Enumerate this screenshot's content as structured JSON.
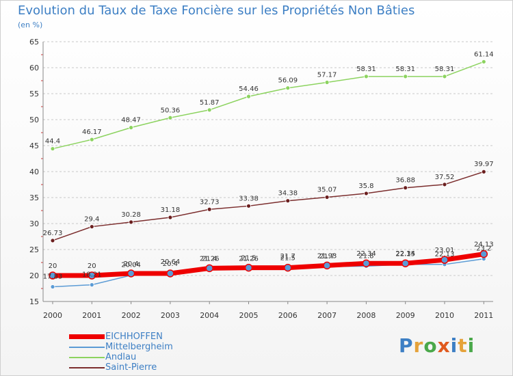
{
  "title": "Evolution du Taux de Taxe Foncière sur les Propriétés Non Bâties",
  "unit": "(en %)",
  "logo": {
    "text": "Proxiti",
    "letter_colors": [
      "#3d7fc4",
      "#e5a23a",
      "#4aa84a",
      "#e05a1e",
      "#3d7fc4",
      "#e5a23a",
      "#4aa84a"
    ]
  },
  "chart_data": {
    "type": "line",
    "title": "Evolution du Taux de Taxe Foncière sur les Propriétés Non Bâties",
    "ylabel": "(en %)",
    "xlabel": "",
    "x": [
      "2000",
      "2001",
      "2002",
      "2003",
      "2004",
      "2005",
      "2006",
      "2007",
      "2008",
      "2009",
      "2010",
      "2011"
    ],
    "ylim": [
      15,
      65
    ],
    "yticks": [
      15,
      20,
      25,
      30,
      35,
      40,
      45,
      50,
      55,
      60,
      65
    ],
    "grid": "dashed-horizontal",
    "series": [
      {
        "name": "EICHHOFFEN",
        "color": "#ee0000",
        "values": [
          20,
          20,
          20.4,
          20.4,
          21.4,
          21.5,
          21.5,
          21.93,
          22.34,
          22.34,
          23.01,
          24.13
        ],
        "labels": [
          "20",
          "20",
          "20.4",
          "20.4",
          "21.4",
          "21.5",
          "21.5",
          "21.93",
          "22.34",
          "22.34",
          "23.01",
          "24.13"
        ]
      },
      {
        "name": "Mittelbergheim",
        "color": "#5b9bd5",
        "values": [
          17.83,
          18.21,
          20.04,
          20.64,
          21.26,
          21.26,
          21.7,
          21.7,
          21.8,
          22.15,
          22.13,
          23.2
        ],
        "labels": [
          "17.83",
          "18.21",
          "20.04",
          "20.64",
          "21.26",
          "21.26",
          "21.7",
          "21.7",
          "21.8",
          "22.15",
          "22.13",
          "23.2"
        ]
      },
      {
        "name": "Andlau",
        "color": "#8cd35f",
        "values": [
          44.4,
          46.17,
          48.47,
          50.36,
          51.87,
          54.46,
          56.09,
          57.17,
          58.31,
          58.31,
          58.31,
          61.14
        ],
        "labels": [
          "44.4",
          "46.17",
          "48.47",
          "50.36",
          "51.87",
          "54.46",
          "56.09",
          "57.17",
          "58.31",
          "58.31",
          "58.31",
          "61.14"
        ]
      },
      {
        "name": "Saint-Pierre",
        "color": "#7b2d2d",
        "values": [
          26.73,
          29.4,
          30.28,
          31.18,
          32.73,
          33.38,
          34.38,
          35.07,
          35.8,
          36.88,
          37.52,
          39.97
        ],
        "labels": [
          "26.73",
          "29.4",
          "30.28",
          "31.18",
          "32.73",
          "33.38",
          "34.38",
          "35.07",
          "35.8",
          "36.88",
          "37.52",
          "39.97"
        ]
      }
    ]
  }
}
